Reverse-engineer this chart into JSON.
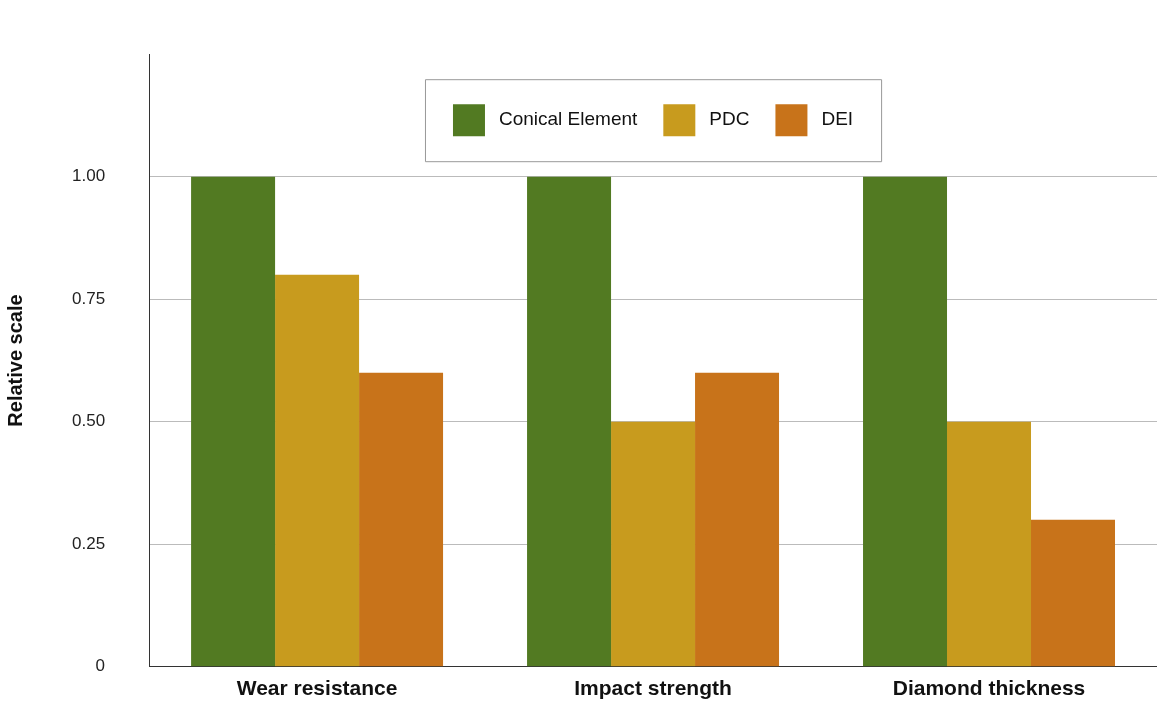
{
  "chart_data": {
    "type": "bar",
    "ylabel": "Relative scale",
    "categories": [
      "Wear resistance",
      "Impact strength",
      "Diamond thickness"
    ],
    "series": [
      {
        "name": "Conical Element",
        "color": "#527a22",
        "values": [
          1.0,
          1.0,
          1.0
        ]
      },
      {
        "name": "PDC",
        "color": "#c89b1e",
        "values": [
          0.8,
          0.5,
          0.5
        ]
      },
      {
        "name": "DEI",
        "color": "#c8731a",
        "values": [
          0.6,
          0.6,
          0.3
        ]
      }
    ],
    "ylim": [
      0,
      1.25
    ],
    "yticks": [
      0,
      {
        "value": 0.25,
        "label": "0.25"
      },
      {
        "value": 0.5,
        "label": "0.50"
      },
      {
        "value": 0.75,
        "label": "0.75"
      },
      {
        "value": 1,
        "label": "1.00"
      }
    ],
    "grid": "y",
    "legend": "top"
  }
}
